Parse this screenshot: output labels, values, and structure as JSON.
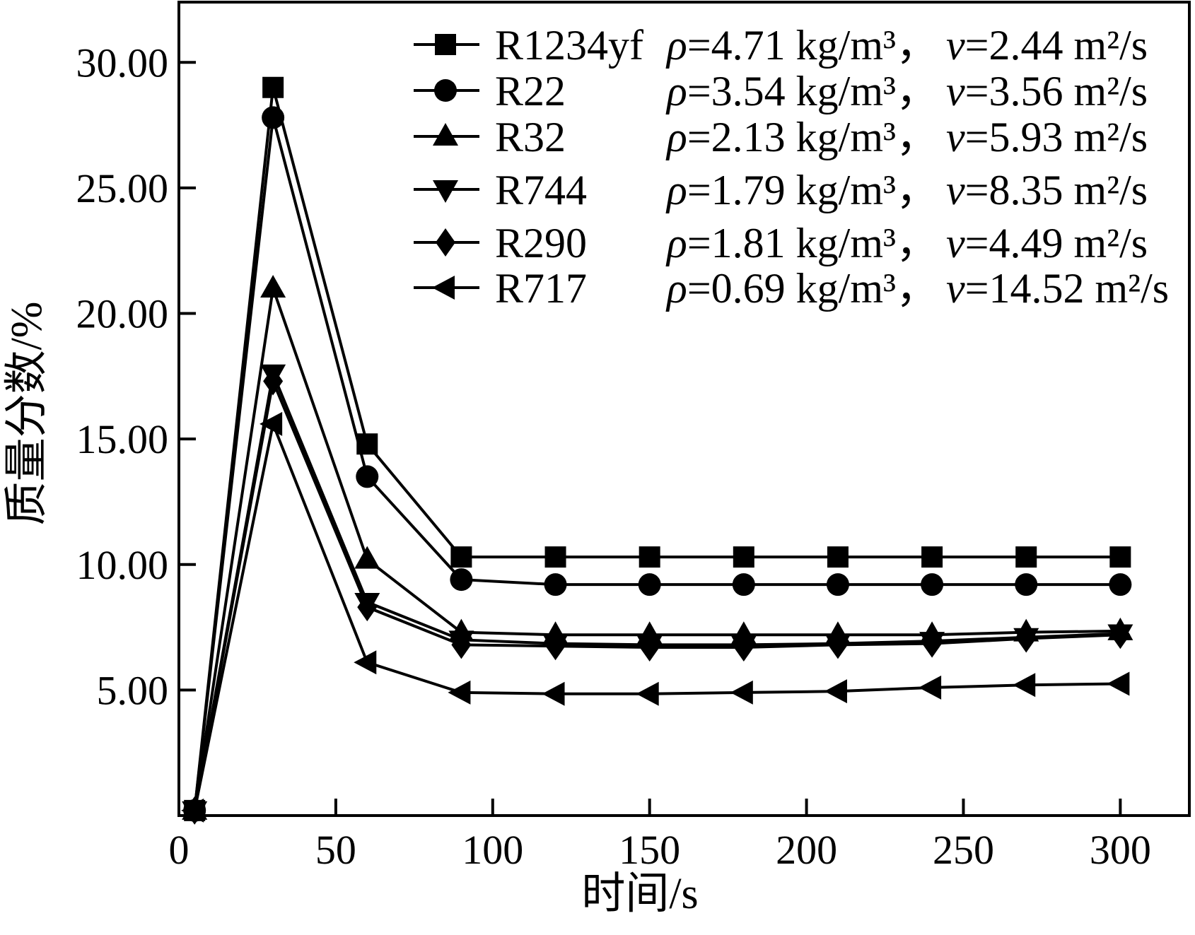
{
  "chart_data": {
    "type": "line",
    "title": "",
    "xlabel": "时间/s",
    "ylabel": "质量分数/%",
    "xlim": [
      0,
      322
    ],
    "ylim": [
      0,
      32.4
    ],
    "grid": false,
    "legend_position": "top-center-inside",
    "line_color": "#000000",
    "x_ticks": [
      {
        "value": 0,
        "label": "0"
      },
      {
        "value": 50,
        "label": "50"
      },
      {
        "value": 100,
        "label": "100"
      },
      {
        "value": 150,
        "label": "150"
      },
      {
        "value": 200,
        "label": "200"
      },
      {
        "value": 250,
        "label": "250"
      },
      {
        "value": 300,
        "label": "300"
      }
    ],
    "y_ticks": [
      {
        "value": 5,
        "label": "5.00"
      },
      {
        "value": 10,
        "label": "10.00"
      },
      {
        "value": 15,
        "label": "15.00"
      },
      {
        "value": 20,
        "label": "20.00"
      },
      {
        "value": 25,
        "label": "25.00"
      },
      {
        "value": 30,
        "label": "30.00"
      }
    ],
    "x": [
      5,
      30,
      60,
      90,
      120,
      150,
      180,
      210,
      240,
      270,
      300
    ],
    "series": [
      {
        "name": "R1234yf",
        "marker": "square",
        "rho": "ρ=4.71 kg/m³，",
        "nu": "v=2.44 m²/s",
        "values": [
          0.2,
          29.0,
          14.8,
          10.3,
          10.3,
          10.3,
          10.3,
          10.3,
          10.3,
          10.3,
          10.3
        ]
      },
      {
        "name": "R22",
        "marker": "circle",
        "rho": "ρ=3.54 kg/m³，",
        "nu": "v=3.56 m²/s",
        "values": [
          0.2,
          27.8,
          13.5,
          9.4,
          9.2,
          9.2,
          9.2,
          9.2,
          9.2,
          9.2,
          9.2
        ]
      },
      {
        "name": "R32",
        "marker": "triangle-up",
        "rho": "ρ=2.13 kg/m³，",
        "nu": "v=5.93 m²/s",
        "values": [
          0.2,
          21.0,
          10.2,
          7.3,
          7.2,
          7.2,
          7.2,
          7.2,
          7.2,
          7.3,
          7.35
        ]
      },
      {
        "name": "R744",
        "marker": "triangle-down",
        "rho": "ρ=1.79 kg/m³，",
        "nu": "v=8.35 m²/s",
        "values": [
          0.2,
          17.6,
          8.5,
          7.0,
          6.85,
          6.8,
          6.8,
          6.85,
          6.95,
          7.1,
          7.25
        ]
      },
      {
        "name": "R290",
        "marker": "diamond",
        "rho": "ρ=1.81 kg/m³，",
        "nu": "v=4.49 m²/s",
        "values": [
          0.2,
          17.3,
          8.3,
          6.8,
          6.75,
          6.7,
          6.7,
          6.8,
          6.85,
          7.05,
          7.2
        ]
      },
      {
        "name": "R717",
        "marker": "triangle-left",
        "rho": "ρ=0.69 kg/m³，",
        "nu": "v=14.52 m²/s",
        "values": [
          0.2,
          15.6,
          6.1,
          4.9,
          4.85,
          4.85,
          4.9,
          4.95,
          5.1,
          5.2,
          5.25
        ]
      }
    ]
  }
}
